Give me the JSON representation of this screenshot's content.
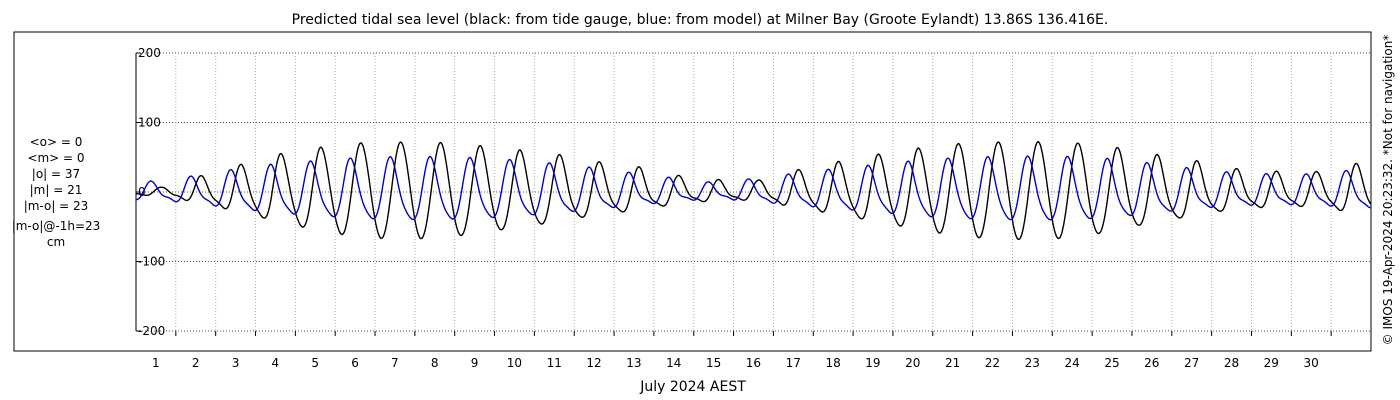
{
  "chart_data": {
    "type": "line",
    "title": "Predicted tidal sea level (black: from tide gauge, blue: from model) at Milner Bay (Groote Eylandt) 13.86S 136.416E.",
    "xlabel": "July 2024 AEST",
    "ylabel": "",
    "ylim": [
      -200,
      200
    ],
    "yticks": [
      -200,
      -100,
      0,
      100,
      200
    ],
    "xlim": [
      0,
      31
    ],
    "xticks": [
      1,
      2,
      3,
      4,
      5,
      6,
      7,
      8,
      9,
      10,
      11,
      12,
      13,
      14,
      15,
      16,
      17,
      18,
      19,
      20,
      21,
      22,
      23,
      24,
      25,
      26,
      27,
      28,
      29,
      30
    ],
    "grid": true,
    "stats": [
      "<o> = 0",
      "<m> = 0",
      "|o| = 37",
      "|m| = 21",
      "|m-o| = 23",
      "|m-o|@-1h=23",
      "cm"
    ],
    "side_note": "© IMOS 19-Apr-2024 20:23:32. *Not for navigation*",
    "series": [
      {
        "color": "#000000",
        "peaks": [
          {
            "day": 0.65,
            "amp": 6
          },
          {
            "day": 1.6,
            "amp": 21
          },
          {
            "day": 2.6,
            "amp": 38
          },
          {
            "day": 3.6,
            "amp": 57
          },
          {
            "day": 4.6,
            "amp": 70
          },
          {
            "day": 5.6,
            "amp": 80
          },
          {
            "day": 6.6,
            "amp": 82
          },
          {
            "day": 7.6,
            "amp": 81
          },
          {
            "day": 8.6,
            "amp": 74
          },
          {
            "day": 9.6,
            "amp": 65
          },
          {
            "day": 10.6,
            "amp": 56
          },
          {
            "day": 11.6,
            "amp": 43
          },
          {
            "day": 12.6,
            "amp": 35
          },
          {
            "day": 13.6,
            "amp": 22
          },
          {
            "day": 14.6,
            "amp": 16
          },
          {
            "day": 15.6,
            "amp": 15
          },
          {
            "day": 16.6,
            "amp": 30
          },
          {
            "day": 17.6,
            "amp": 43
          },
          {
            "day": 18.6,
            "amp": 56
          },
          {
            "day": 19.6,
            "amp": 68
          },
          {
            "day": 20.6,
            "amp": 78
          },
          {
            "day": 21.6,
            "amp": 82
          },
          {
            "day": 22.6,
            "amp": 83
          },
          {
            "day": 23.6,
            "amp": 80
          },
          {
            "day": 24.6,
            "amp": 70
          },
          {
            "day": 25.6,
            "amp": 56
          },
          {
            "day": 26.6,
            "amp": 45
          },
          {
            "day": 27.6,
            "amp": 32
          },
          {
            "day": 28.6,
            "amp": 28
          },
          {
            "day": 29.6,
            "amp": 27
          },
          {
            "day": 30.6,
            "amp": 40
          }
        ]
      },
      {
        "color": "#0000cc",
        "peaks": [
          {
            "day": 0.4,
            "amp": 14
          },
          {
            "day": 1.55,
            "amp": 22
          },
          {
            "day": 2.55,
            "amp": 32
          },
          {
            "day": 3.55,
            "amp": 40
          },
          {
            "day": 4.55,
            "amp": 45
          },
          {
            "day": 5.55,
            "amp": 50
          },
          {
            "day": 6.55,
            "amp": 52
          },
          {
            "day": 7.55,
            "amp": 52
          },
          {
            "day": 8.55,
            "amp": 50
          },
          {
            "day": 9.55,
            "amp": 46
          },
          {
            "day": 10.55,
            "amp": 40
          },
          {
            "day": 11.55,
            "amp": 33
          },
          {
            "day": 12.55,
            "amp": 25
          },
          {
            "day": 13.55,
            "amp": 18
          },
          {
            "day": 14.55,
            "amp": 12
          },
          {
            "day": 15.55,
            "amp": 18
          },
          {
            "day": 16.55,
            "amp": 25
          },
          {
            "day": 17.55,
            "amp": 32
          },
          {
            "day": 18.55,
            "amp": 38
          },
          {
            "day": 19.55,
            "amp": 45
          },
          {
            "day": 20.55,
            "amp": 50
          },
          {
            "day": 21.55,
            "amp": 52
          },
          {
            "day": 22.55,
            "amp": 53
          },
          {
            "day": 23.55,
            "amp": 52
          },
          {
            "day": 24.55,
            "amp": 48
          },
          {
            "day": 25.55,
            "amp": 40
          },
          {
            "day": 26.55,
            "amp": 32
          },
          {
            "day": 27.55,
            "amp": 26
          },
          {
            "day": 28.55,
            "amp": 24
          },
          {
            "day": 29.55,
            "amp": 24
          },
          {
            "day": 30.55,
            "amp": 30
          }
        ]
      }
    ]
  }
}
